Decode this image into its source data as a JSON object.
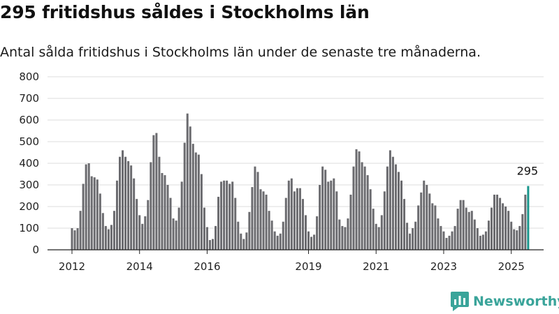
{
  "header": {
    "title": "295 fritidshus såldes i Stockholms län",
    "subtitle": "Antal sålda fritidshus i Stockholms län under de senaste tre månaderna."
  },
  "brand": {
    "name": "Newsworthy",
    "color": "#3aa49a"
  },
  "colors": {
    "bar": "#6b6b6f",
    "highlight": "#1a968c",
    "grid": "#dddddd",
    "axis": "#222222"
  },
  "chart_data": {
    "type": "bar",
    "title": "295 fritidshus såldes i Stockholms län",
    "subtitle": "Antal sålda fritidshus i Stockholms län under de senaste tre månaderna.",
    "xlabel": "",
    "ylabel": "",
    "ylim": [
      0,
      800
    ],
    "yticks": [
      "0",
      "100",
      "200",
      "300",
      "400",
      "500",
      "600",
      "700",
      "800"
    ],
    "xticks": [
      {
        "label": "2012",
        "index": 0
      },
      {
        "label": "2014",
        "index": 24
      },
      {
        "label": "2016",
        "index": 48
      },
      {
        "label": "2019",
        "index": 84
      },
      {
        "label": "2021",
        "index": 108
      },
      {
        "label": "2023",
        "index": 132
      },
      {
        "label": "2025",
        "index": 156
      }
    ],
    "grid": true,
    "legend": "none",
    "first_period": "2012-01",
    "series": [
      {
        "values": [
          100,
          90,
          100,
          180,
          305,
          395,
          400,
          340,
          335,
          325,
          260,
          170,
          110,
          95,
          115,
          180,
          320,
          430,
          460,
          430,
          410,
          390,
          330,
          235,
          160,
          120,
          155,
          230,
          405,
          530,
          540,
          430,
          355,
          345,
          300,
          240,
          145,
          135,
          195,
          315,
          495,
          630,
          570,
          490,
          450,
          440,
          350,
          195,
          105,
          45,
          50,
          110,
          245,
          315,
          320,
          320,
          305,
          315,
          240,
          130,
          75,
          50,
          80,
          175,
          290,
          385,
          360,
          280,
          270,
          255,
          180,
          135,
          85,
          65,
          75,
          130,
          240,
          320,
          330,
          270,
          285,
          285,
          235,
          160,
          85,
          60,
          70,
          155,
          300,
          385,
          370,
          315,
          320,
          330,
          270,
          140,
          110,
          105,
          145,
          255,
          385,
          465,
          455,
          405,
          385,
          345,
          280,
          190,
          120,
          105,
          160,
          270,
          385,
          460,
          430,
          395,
          360,
          320,
          235,
          125,
          75,
          100,
          130,
          205,
          265,
          320,
          300,
          260,
          215,
          205,
          145,
          110,
          85,
          55,
          65,
          85,
          110,
          190,
          230,
          230,
          195,
          175,
          180,
          140,
          100,
          65,
          70,
          85,
          135,
          195,
          255,
          255,
          240,
          215,
          200,
          180,
          130,
          95,
          90,
          110,
          165,
          255,
          295
        ]
      }
    ],
    "annotation": {
      "label": "295",
      "index": 162
    }
  }
}
